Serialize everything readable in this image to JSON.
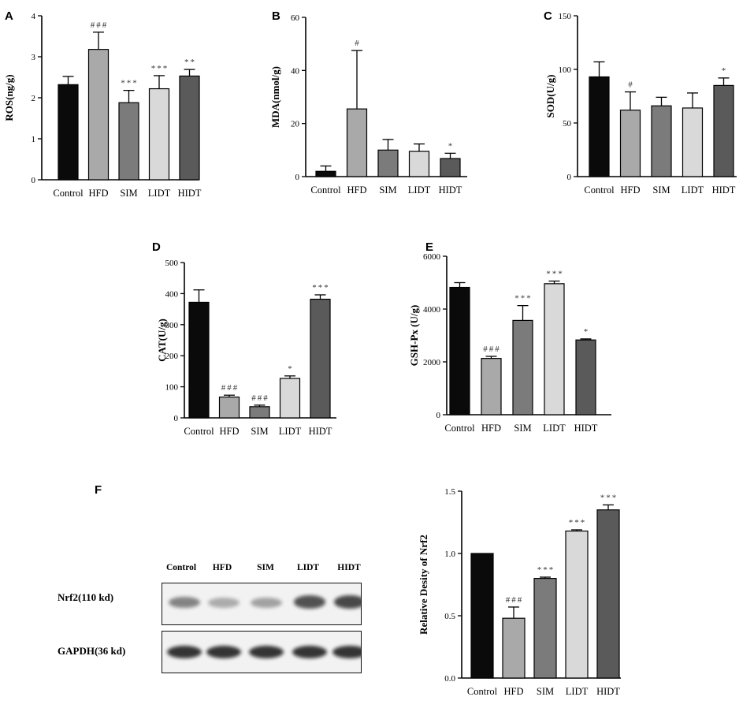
{
  "colors": {
    "Control": "#0a0a0a",
    "HFD": "#a9a9a9",
    "SIM": "#7b7b7b",
    "LIDT": "#d9d9d9",
    "HIDT": "#5a5a5a"
  },
  "chart_data": [
    {
      "id": "A",
      "type": "bar",
      "letter": "A",
      "categories": [
        "Control",
        "HFD",
        "SIM",
        "LIDT",
        "HIDT"
      ],
      "values": [
        2.32,
        3.18,
        1.88,
        2.22,
        2.53
      ],
      "errors": [
        0.2,
        0.42,
        0.3,
        0.32,
        0.16
      ],
      "significance": [
        "",
        "###",
        "***",
        "***",
        "**"
      ],
      "ylabel": "ROS(ng/g)",
      "ylim": [
        0,
        4
      ],
      "yticks": [
        0,
        1,
        2,
        3,
        4
      ]
    },
    {
      "id": "B",
      "type": "bar",
      "letter": "B",
      "categories": [
        "Control",
        "HFD",
        "SIM",
        "LIDT",
        "HIDT"
      ],
      "values": [
        2.0,
        25.5,
        10.0,
        9.5,
        6.8
      ],
      "errors": [
        2.0,
        22.0,
        4.0,
        2.8,
        2.0
      ],
      "significance": [
        "",
        "#",
        "",
        "",
        "*"
      ],
      "ylabel": "MDA(nmol/g)",
      "ylim": [
        0,
        60
      ],
      "yticks": [
        0,
        20,
        40,
        60
      ]
    },
    {
      "id": "C",
      "type": "bar",
      "letter": "C",
      "categories": [
        "Control",
        "HFD",
        "SIM",
        "LIDT",
        "HIDT"
      ],
      "values": [
        93,
        62,
        66,
        64,
        85
      ],
      "errors": [
        14,
        17,
        8,
        14,
        7
      ],
      "significance": [
        "",
        "#",
        "",
        "",
        "*"
      ],
      "ylabel": "SOD(U/g)",
      "ylim": [
        0,
        150
      ],
      "yticks": [
        0,
        50,
        100,
        150
      ]
    },
    {
      "id": "D",
      "type": "bar",
      "letter": "D",
      "categories": [
        "Control",
        "HFD",
        "SIM",
        "LIDT",
        "HIDT"
      ],
      "values": [
        372,
        67,
        36,
        127,
        382
      ],
      "errors": [
        40,
        6,
        5,
        8,
        14
      ],
      "significance": [
        "",
        "###",
        "###",
        "*",
        "***"
      ],
      "ylabel": "CAT(U/g)",
      "ylim": [
        0,
        500
      ],
      "yticks": [
        0,
        100,
        200,
        300,
        400,
        500
      ]
    },
    {
      "id": "E",
      "type": "bar",
      "letter": "E",
      "categories": [
        "Control",
        "HFD",
        "SIM",
        "LIDT",
        "HIDT"
      ],
      "values": [
        4820,
        2130,
        3570,
        4960,
        2830
      ],
      "errors": [
        180,
        80,
        560,
        100,
        40
      ],
      "significance": [
        "",
        "###",
        "***",
        "***",
        "*"
      ],
      "ylabel": "GSH-Px (U/g)",
      "ylim": [
        0,
        6000
      ],
      "yticks": [
        0,
        2000,
        4000,
        6000
      ]
    },
    {
      "id": "F",
      "type": "bar",
      "letter": "",
      "categories": [
        "Control",
        "HFD",
        "SIM",
        "LIDT",
        "HIDT"
      ],
      "values": [
        1.0,
        0.48,
        0.8,
        1.18,
        1.35
      ],
      "errors": [
        0.0,
        0.09,
        0.01,
        0.01,
        0.04
      ],
      "significance": [
        "",
        "###",
        "***",
        "***",
        "***"
      ],
      "ylabel": "Relative Desity of Nrf2",
      "ylim": [
        0,
        1.5
      ],
      "yticks": [
        "0.0",
        "0.5",
        "1.0",
        "1.5"
      ]
    }
  ],
  "blot": {
    "letter": "F",
    "lanes": [
      "Control",
      "HFD",
      "SIM",
      "LIDT",
      "HIDT"
    ],
    "rows": [
      {
        "label": "Nrf2(110 kd)",
        "intensity": [
          0.55,
          0.35,
          0.4,
          0.8,
          0.85
        ]
      },
      {
        "label": "GAPDH(36 kd)",
        "intensity": [
          0.95,
          0.95,
          0.95,
          0.95,
          0.95
        ]
      }
    ]
  }
}
